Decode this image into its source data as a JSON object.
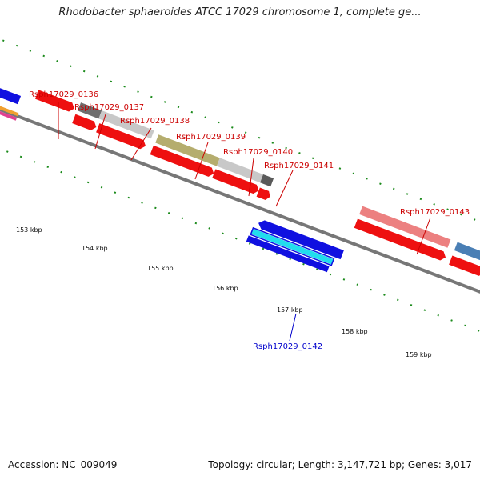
{
  "header": {
    "title": "Rhodobacter sphaeroides ATCC 17029 chromosome 1, complete ge..."
  },
  "footer": {
    "accession": "Accession: NC_009049",
    "topology": "Topology: circular; Length: 3,147,721 bp; Genes: 3,017"
  },
  "scale": {
    "ticks": [
      "153 kbp",
      "154 kbp",
      "155 kbp",
      "156 kbp",
      "157 kbp",
      "158 kbp",
      "159 kbp"
    ]
  },
  "genes": [
    {
      "label": "Rsph17029_0136",
      "color": "#cc0000"
    },
    {
      "label": "Rsph17029_0137",
      "color": "#cc0000"
    },
    {
      "label": "Rsph17029_0138",
      "color": "#cc0000"
    },
    {
      "label": "Rsph17029_0139",
      "color": "#cc0000"
    },
    {
      "label": "Rsph17029_0140",
      "color": "#cc0000"
    },
    {
      "label": "Rsph17029_0141",
      "color": "#cc0000"
    },
    {
      "label": "Rsph17029_0143",
      "color": "#cc0000"
    },
    {
      "label": "Rsph17029_0142",
      "color": "#0000cc"
    }
  ]
}
